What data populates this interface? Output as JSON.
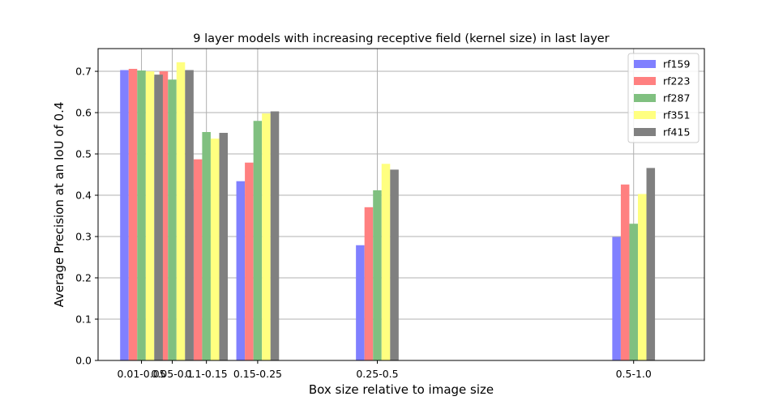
{
  "chart_data": {
    "type": "bar",
    "title": "9 layer models with increasing receptive field (kernel size) in last layer",
    "xlabel": "Box size relative to image size",
    "ylabel": "Average Precision at an IoU of 0.4",
    "ylim": [
      0,
      0.755
    ],
    "yticks": [
      "0.0",
      "0.1",
      "0.2",
      "0.3",
      "0.4",
      "0.5",
      "0.6",
      "0.7"
    ],
    "grid": true,
    "legend_position": "top-right",
    "categories": [
      "0.01-0.05",
      "0.05-0.1",
      "0.1-0.15",
      "0.15-0.25",
      "0.25-0.5",
      "0.5-1.0"
    ],
    "category_centers": [
      0.03,
      0.075,
      0.125,
      0.2,
      0.375,
      0.75
    ],
    "xlim": [
      -0.0335,
      0.8535
    ],
    "bar_width": 0.0125,
    "series": [
      {
        "name": "rf159",
        "color": "#8080ff",
        "values": [
          0.703,
          0.686,
          0.413,
          0.434,
          0.279,
          0.299
        ]
      },
      {
        "name": "rf223",
        "color": "#ff8080",
        "values": [
          0.706,
          0.7,
          0.487,
          0.479,
          0.371,
          0.426
        ]
      },
      {
        "name": "rf287",
        "color": "#80c080",
        "values": [
          0.702,
          0.68,
          0.553,
          0.58,
          0.412,
          0.331
        ]
      },
      {
        "name": "rf351",
        "color": "#ffff80",
        "values": [
          0.7,
          0.722,
          0.537,
          0.598,
          0.476,
          0.403
        ]
      },
      {
        "name": "rf415",
        "color": "#808080",
        "values": [
          0.692,
          0.703,
          0.551,
          0.603,
          0.462,
          0.466
        ]
      }
    ]
  }
}
